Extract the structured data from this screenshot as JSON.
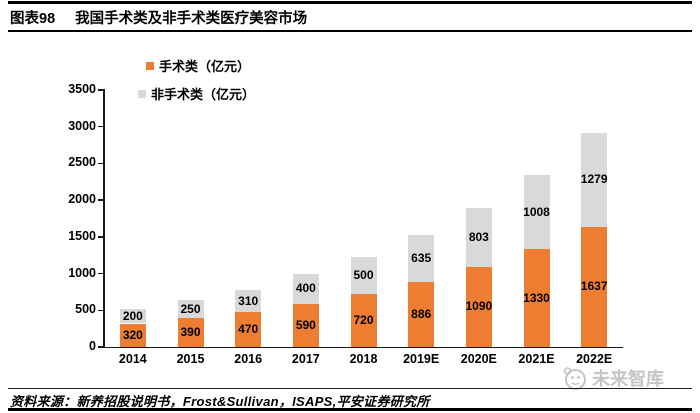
{
  "header": {
    "figure_label": "图表98",
    "title": "我国手术类及非手术类医疗美容市场"
  },
  "legend": {
    "items": [
      {
        "label": "手术类（亿元）",
        "color": "#ED7D31"
      },
      {
        "label": "非手术类（亿元）",
        "color": "#D9D9D9"
      }
    ]
  },
  "chart_data": {
    "type": "bar",
    "stacked": true,
    "title": "我国手术类及非手术类医疗美容市场",
    "categories": [
      "2014",
      "2015",
      "2016",
      "2017",
      "2018",
      "2019E",
      "2020E",
      "2021E",
      "2022E"
    ],
    "series": [
      {
        "name": "手术类（亿元）",
        "color": "#ED7D31",
        "values": [
          320,
          390,
          470,
          590,
          720,
          886,
          1090,
          1330,
          1637
        ]
      },
      {
        "name": "非手术类（亿元）",
        "color": "#D9D9D9",
        "values": [
          200,
          250,
          310,
          400,
          500,
          635,
          803,
          1008,
          1279
        ]
      }
    ],
    "y_axis": {
      "min": 0,
      "max": 3500,
      "step": 500
    },
    "grid": false,
    "data_labels": true,
    "legend_position": "top-left"
  },
  "watermark": {
    "text": "未来智库"
  },
  "footer": {
    "source": "资料来源：新养招股说明书，Frost&Sullivan，ISAPS,平安证券研究所"
  }
}
